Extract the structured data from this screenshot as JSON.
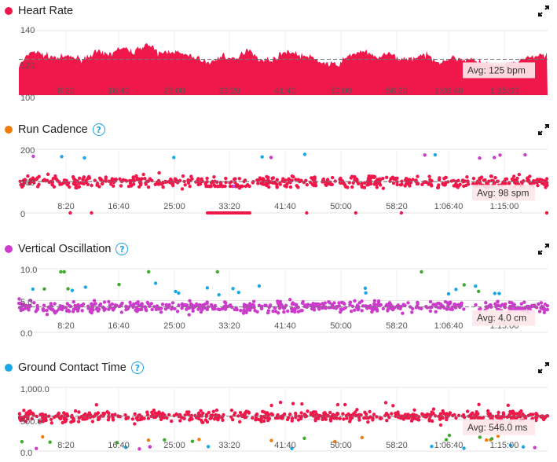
{
  "colors": {
    "red": "#f0174a",
    "orange": "#ee7d0e",
    "magenta": "#cc3bcb",
    "blue": "#1ba7e6",
    "green": "#3fa92e"
  },
  "x_ticks": [
    "8:20",
    "16:40",
    "25:00",
    "33:20",
    "41:40",
    "50:00",
    "58:20",
    "1:06:40",
    "1:15:00"
  ],
  "panels": [
    {
      "title": "Heart Rate",
      "dot_color": "#f0174a",
      "help": false,
      "avg_label": "Avg: 125 bpm",
      "y_ticks": [
        "140",
        "120",
        "100"
      ]
    },
    {
      "title": "Run Cadence",
      "dot_color": "#ee7d0e",
      "help": true,
      "help_label": "?",
      "avg_label": "Avg: 98 spm",
      "y_ticks": [
        "200",
        "100",
        "0"
      ]
    },
    {
      "title": "Vertical Oscillation",
      "dot_color": "#cc3bcb",
      "help": true,
      "help_label": "?",
      "avg_label": "Avg: 4.0 cm",
      "y_ticks": [
        "10.0",
        "5.0",
        "0.0"
      ]
    },
    {
      "title": "Ground Contact Time",
      "dot_color": "#1ba7e6",
      "help": true,
      "help_label": "?",
      "avg_label": "Avg: 546.0 ms",
      "y_ticks": [
        "1,000.0",
        "500.0",
        "0.0"
      ]
    }
  ],
  "chart_data": [
    {
      "type": "area",
      "title": "Heart Rate",
      "x_range_minutes": [
        0,
        83
      ],
      "ylim": [
        100,
        145
      ],
      "average": 125,
      "approx_series_minutes": [
        0,
        2,
        4,
        6,
        8,
        10,
        12,
        14,
        16,
        18,
        20,
        22,
        24,
        26,
        28,
        30,
        32,
        34,
        36,
        38,
        40,
        42,
        44,
        46,
        48,
        50,
        52,
        54,
        56,
        58,
        60,
        62,
        64,
        66,
        68,
        70,
        72,
        74,
        76,
        78,
        80,
        82
      ],
      "approx_series_bpm": [
        120,
        131,
        128,
        126,
        127,
        125,
        130,
        128,
        133,
        130,
        136,
        129,
        131,
        128,
        126,
        122,
        128,
        124,
        133,
        124,
        125,
        131,
        128,
        126,
        122,
        121,
        128,
        131,
        126,
        129,
        125,
        126,
        128,
        123,
        126,
        125,
        124,
        121,
        120,
        123,
        126,
        128
      ]
    },
    {
      "type": "scatter",
      "title": "Run Cadence",
      "ylim": [
        0,
        200
      ],
      "average": 98
    },
    {
      "type": "scatter",
      "title": "Vertical Oscillation",
      "ylim": [
        0,
        10
      ],
      "average": 4.0
    },
    {
      "type": "scatter",
      "title": "Ground Contact Time",
      "ylim": [
        0,
        1000
      ],
      "average": 546.0
    }
  ]
}
